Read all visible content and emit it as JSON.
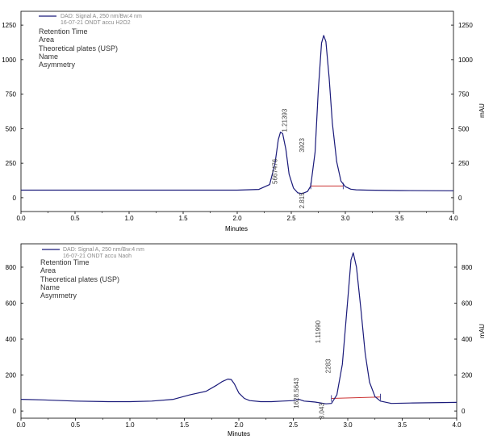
{
  "chart_data": [
    {
      "type": "line",
      "xlabel": "Minutes",
      "ylabel_right": "mAU",
      "xlim": [
        0,
        4
      ],
      "ylim": [
        -100,
        1350
      ],
      "x_ticks": [
        "0.0",
        "0.5",
        "1.0",
        "1.5",
        "2.0",
        "2.5",
        "3.0",
        "3.5",
        "4.0"
      ],
      "y_ticks_left": [
        {
          "value": 1250,
          "label": "1250"
        },
        {
          "value": 1000,
          "label": "1000"
        },
        {
          "value": 750,
          "label": "750"
        },
        {
          "value": 500,
          "label": "500"
        },
        {
          "value": 250,
          "label": "250"
        },
        {
          "value": 0,
          "label": "0"
        }
      ],
      "y_ticks_right": [
        {
          "value": 1250,
          "label": "1250"
        },
        {
          "value": 1000,
          "label": "1000"
        },
        {
          "value": 750,
          "label": "750"
        },
        {
          "value": 500,
          "label": "500"
        },
        {
          "value": 250,
          "label": "250"
        },
        {
          "value": 0,
          "label": "0"
        }
      ],
      "legend": {
        "line1": "DAD: Signal A, 250 nm/Bw:4 nm",
        "line2": "16-07-21 ONDT accu H2O2"
      },
      "info_lines": [
        "Retention Time",
        "Area",
        "Theoretical plates (USP)",
        "Name",
        "Asymmetry"
      ],
      "series": [
        {
          "color": "#1a1a7a",
          "x": [
            0.0,
            0.5,
            1.0,
            1.5,
            2.0,
            2.2,
            2.3,
            2.35,
            2.38,
            2.4,
            2.42,
            2.45,
            2.48,
            2.52,
            2.56,
            2.6,
            2.65,
            2.68,
            2.72,
            2.75,
            2.78,
            2.8,
            2.82,
            2.85,
            2.88,
            2.92,
            2.96,
            3.0,
            3.05,
            3.1,
            3.2,
            3.5,
            4.0
          ],
          "y": [
            55,
            55,
            55,
            55,
            55,
            60,
            95,
            250,
            420,
            475,
            465,
            350,
            170,
            70,
            35,
            30,
            45,
            85,
            330,
            780,
            1120,
            1175,
            1130,
            870,
            540,
            260,
            120,
            80,
            62,
            57,
            55,
            52,
            50
          ]
        }
      ],
      "baseline": {
        "x": [
          2.68,
          2.98
        ],
        "y": [
          85,
          85
        ],
        "color": "#cc3333"
      },
      "annotations": [
        {
          "text": "1.21393",
          "x": 2.46,
          "y": 560
        },
        {
          "text": "3923",
          "x": 2.62,
          "y": 380
        },
        {
          "text": "5667476",
          "x": 2.37,
          "y": 190
        },
        {
          "text": "2.815",
          "x": 2.62,
          "y": -20
        }
      ]
    },
    {
      "type": "line",
      "xlabel": "Minutes",
      "ylabel_right": "mAU",
      "xlim": [
        0,
        4
      ],
      "ylim": [
        -40,
        930
      ],
      "x_ticks": [
        "0.0",
        "0.5",
        "1.0",
        "1.5",
        "2.0",
        "2.5",
        "3.0",
        "3.5",
        "4.0"
      ],
      "y_ticks_left": [
        {
          "value": 800,
          "label": "800"
        },
        {
          "value": 600,
          "label": "600"
        },
        {
          "value": 400,
          "label": "400"
        },
        {
          "value": 200,
          "label": "200"
        },
        {
          "value": 0,
          "label": "0"
        }
      ],
      "y_ticks_right": [
        {
          "value": 800,
          "label": "800"
        },
        {
          "value": 600,
          "label": "600"
        },
        {
          "value": 400,
          "label": "400"
        },
        {
          "value": 200,
          "label": "200"
        },
        {
          "value": 0,
          "label": "0"
        }
      ],
      "legend": {
        "line1": "DAD: Signal A, 250 nm/Bw:4 nm",
        "line2": "16-07-21 ONDT accu Naoh"
      },
      "info_lines": [
        "Retention Time",
        "Area",
        "Theoretical plates (USP)",
        "Name",
        "Asymmetry"
      ],
      "series": [
        {
          "color": "#1a1a7a",
          "x": [
            0.0,
            0.2,
            0.5,
            0.8,
            1.0,
            1.2,
            1.4,
            1.55,
            1.7,
            1.8,
            1.85,
            1.9,
            1.93,
            1.96,
            2.0,
            2.05,
            2.1,
            2.2,
            2.3,
            2.4,
            2.5,
            2.55,
            2.6,
            2.7,
            2.8,
            2.85,
            2.9,
            2.95,
            3.0,
            3.03,
            3.05,
            3.08,
            3.12,
            3.16,
            3.2,
            3.25,
            3.3,
            3.4,
            3.6,
            4.0
          ],
          "y": [
            65,
            62,
            55,
            52,
            52,
            55,
            65,
            90,
            110,
            145,
            165,
            178,
            175,
            150,
            100,
            70,
            58,
            52,
            52,
            55,
            58,
            65,
            55,
            50,
            40,
            42,
            90,
            260,
            620,
            840,
            880,
            800,
            570,
            320,
            160,
            80,
            55,
            42,
            45,
            48
          ]
        }
      ],
      "baseline": {
        "x": [
          2.85,
          3.3
        ],
        "y": [
          70,
          78
        ],
        "color": "#cc3333"
      },
      "annotations": [
        {
          "text": "1.11990",
          "x": 2.75,
          "y": 440
        },
        {
          "text": "2283",
          "x": 2.84,
          "y": 250
        },
        {
          "text": "1628.5643",
          "x": 2.55,
          "y": 100
        },
        {
          "text": "3.043",
          "x": 2.78,
          "y": 0
        }
      ]
    }
  ]
}
